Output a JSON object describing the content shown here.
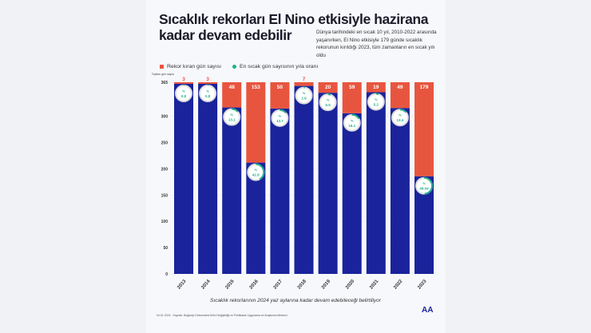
{
  "title": "Sıcaklık rekorları El Nino etkisiyle hazirana kadar devam edebilir",
  "subtitle": "Dünya tarihindeki en sıcak 10 yıl, 2010-2022 arasında yaşanırken, El Nino etkisiyle 179 günde sıcaklık rekorunun kırıldığı 2023, tüm zamanların en sıcak yılı oldu",
  "note": "Sıcaklık rekorlarının 2024 yaz aylarına kadar devam edebileceği belirtiliyor",
  "footer": {
    "date": "04.01.2024",
    "source": "Kaynak: Boğaziçi Üniversitesi İklim Değişikliği ve Politikaları Uygulama ve Araştırma Merkezi",
    "logo": "AA"
  },
  "colors": {
    "blue": "#1a239b",
    "red": "#e8553f",
    "green": "#1db18a"
  },
  "chart_data": {
    "type": "bar",
    "stacked": true,
    "ylabel": "Toplam gün sayısı",
    "ylim": [
      0,
      365
    ],
    "yticks": [
      0,
      50,
      100,
      150,
      200,
      250,
      300,
      365
    ],
    "categories": [
      "2013",
      "2014",
      "2015",
      "2016",
      "2017",
      "2018",
      "2019",
      "2020",
      "2021",
      "2022",
      "2023"
    ],
    "series": [
      {
        "name": "Rekor kıran gün sayısı",
        "values": [
          3,
          3,
          48,
          153,
          50,
          7,
          20,
          59,
          19,
          49,
          179
        ]
      },
      {
        "name": "En sıcak gün sayısının yıla oranı",
        "values": [
          0.8,
          0.8,
          13.1,
          41.9,
          13.7,
          1.9,
          5.5,
          16.1,
          5.2,
          13.4,
          49.04
        ]
      }
    ],
    "total_days": 365
  }
}
